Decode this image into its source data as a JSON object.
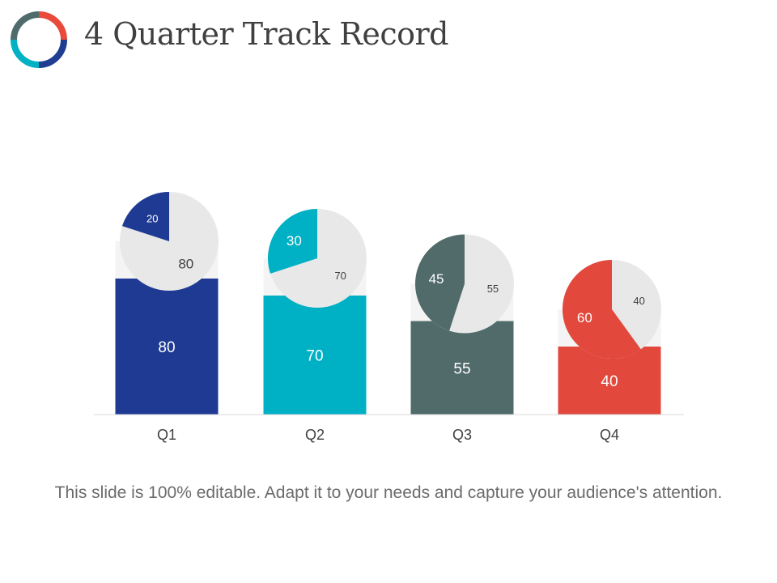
{
  "slide": {
    "title": "4 Quarter Track Record",
    "caption": "This slide is 100% editable. Adapt it to your needs and capture your audience's attention."
  },
  "logo": {
    "icon": "ring-logo-icon",
    "colors": [
      "#e84b3c",
      "#1f3d91",
      "#02b1c3",
      "#506b6b"
    ]
  },
  "colors": {
    "pie_rest": "#e8e8e8",
    "bar_track": "#f4f4f4",
    "axis": "#d9d9d9",
    "label_dark": "#404040",
    "label_light": "#ffffff"
  },
  "chart_data": {
    "type": "bar",
    "categories": [
      "Q1",
      "Q2",
      "Q3",
      "Q4"
    ],
    "values": [
      80,
      70,
      55,
      40
    ],
    "ylim": [
      0,
      100
    ],
    "bar_colors": [
      "#1f3a93",
      "#00b0c4",
      "#506b6a",
      "#e2483c"
    ],
    "pies": [
      {
        "category": "Q1",
        "values": [
          20,
          80
        ]
      },
      {
        "category": "Q2",
        "values": [
          30,
          70
        ]
      },
      {
        "category": "Q3",
        "values": [
          45,
          55
        ]
      },
      {
        "category": "Q4",
        "values": [
          60,
          40
        ]
      }
    ]
  }
}
